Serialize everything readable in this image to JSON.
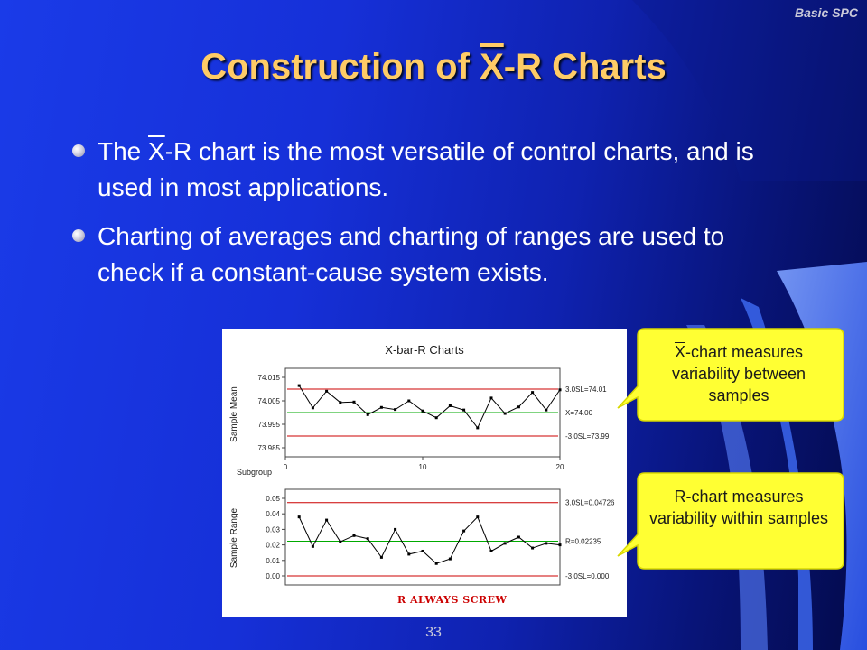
{
  "slide": {
    "corner_label": "Basic SPC",
    "title_prefix": "Construction of ",
    "title_x": "X",
    "title_suffix": "-R Charts",
    "bullets": [
      {
        "pre": "The ",
        "x": "X",
        "post": "-R chart is the most versatile of control charts, and is used in most applications."
      },
      {
        "pre": "",
        "x": "",
        "post": "Charting of averages and charting of ranges are used to check if a constant-cause system exists."
      }
    ],
    "page_number": "33"
  },
  "callouts": [
    {
      "x": "X",
      "text": "-chart measures variability between samples"
    },
    {
      "x": "",
      "text": "R-chart measures variability within samples"
    }
  ],
  "chart_data": [
    {
      "type": "line",
      "title": "X-bar-R Charts",
      "ylabel": "Sample Mean",
      "xlabel_prefix": "Subgroup",
      "x_ticks": [
        "0",
        "10",
        "20"
      ],
      "y_ticks": [
        "74.015",
        "74.005",
        "73.995",
        "73.985"
      ],
      "ylim": [
        73.985,
        74.015
      ],
      "xlim": [
        0,
        20
      ],
      "ucl": 74.01,
      "center": 74.0,
      "lcl": 73.99,
      "ucl_label": "3.0SL=74.01",
      "center_label": "X=74.00",
      "lcl_label": "-3.0SL=73.99",
      "x": [
        1,
        2,
        3,
        4,
        5,
        6,
        7,
        8,
        9,
        10,
        11,
        12,
        13,
        14,
        15,
        16,
        17,
        18,
        19,
        20
      ],
      "values": [
        74.0115,
        74.002,
        74.0091,
        74.0043,
        74.0045,
        73.9991,
        74.0022,
        74.0013,
        74.005,
        74.0007,
        73.9978,
        74.0029,
        74.0011,
        73.9935,
        74.0062,
        73.9996,
        74.0024,
        74.0086,
        74.0011,
        74.0097
      ]
    },
    {
      "type": "line",
      "ylabel": "Sample Range",
      "y_ticks": [
        "0.05",
        "0.04",
        "0.03",
        "0.02",
        "0.01",
        "0.00"
      ],
      "ylim": [
        0,
        0.05
      ],
      "xlim": [
        0,
        20
      ],
      "ucl": 0.04726,
      "center": 0.02235,
      "lcl": 0.0,
      "ucl_label": "3.0SL=0.04726",
      "center_label": "R=0.02235",
      "lcl_label": "-3.0SL=0.000",
      "annotation": "R ALWAYS SCREW",
      "x": [
        1,
        2,
        3,
        4,
        5,
        6,
        7,
        8,
        9,
        10,
        11,
        12,
        13,
        14,
        15,
        16,
        17,
        18,
        19,
        20
      ],
      "values": [
        0.038,
        0.019,
        0.036,
        0.022,
        0.026,
        0.024,
        0.012,
        0.03,
        0.014,
        0.016,
        0.008,
        0.011,
        0.029,
        0.038,
        0.016,
        0.021,
        0.025,
        0.018,
        0.021,
        0.02
      ]
    }
  ],
  "colors": {
    "title": "#ffcc66",
    "callout_fill": "#ffff33",
    "control_limit": "#cc0000",
    "center_line": "#00aa00",
    "annotation": "#cc0000"
  }
}
